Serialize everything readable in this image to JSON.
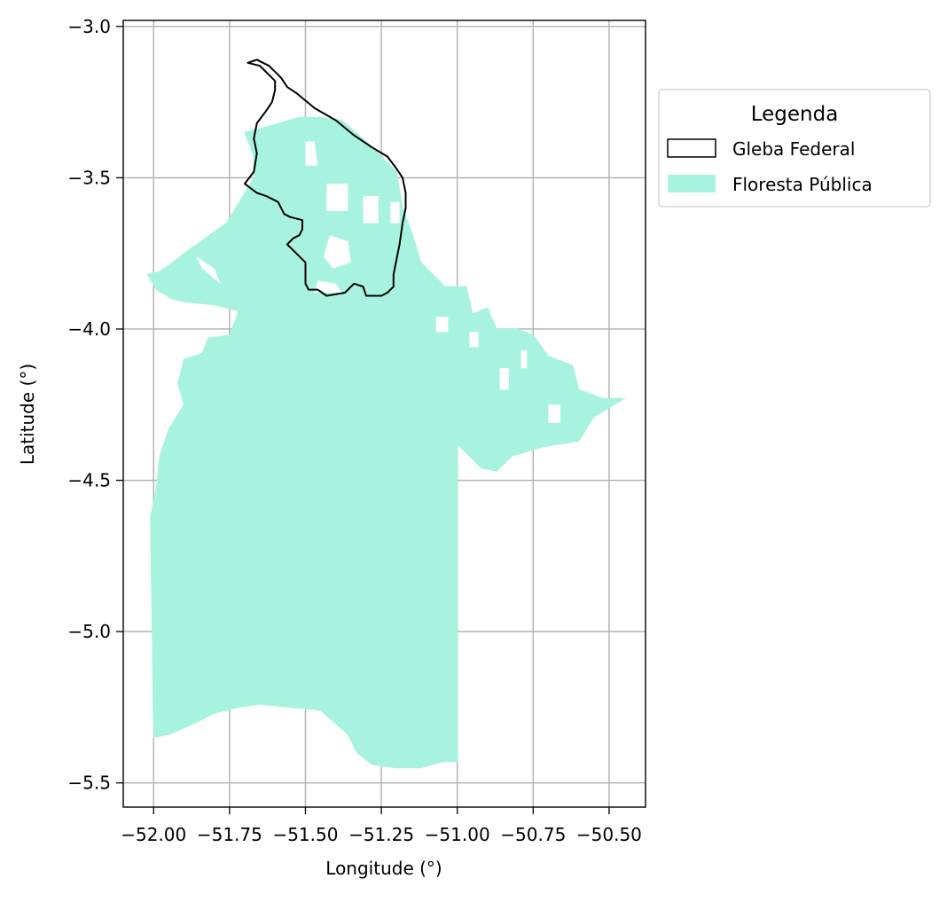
{
  "map": {
    "axes": {
      "xlabel": "Longitude (°)",
      "ylabel": "Latitude (°)",
      "xlim": [
        -52.1,
        -50.38
      ],
      "ylim": [
        -5.58,
        -2.98
      ],
      "xticks": [
        -52.0,
        -51.75,
        -51.5,
        -51.25,
        -51.0,
        -50.75,
        -50.5
      ],
      "yticks": [
        -3.0,
        -3.5,
        -4.0,
        -4.5,
        -5.0,
        -5.5
      ],
      "xtick_labels": [
        "−52.00",
        "−51.75",
        "−51.50",
        "−51.25",
        "−51.00",
        "−50.75",
        "−50.50"
      ],
      "ytick_labels": [
        "−3.0",
        "−3.5",
        "−4.0",
        "−4.5",
        "−5.0",
        "−5.5"
      ],
      "grid": true
    },
    "legend": {
      "title": "Legenda",
      "placement": "outside-right-top",
      "items": [
        {
          "label": "Gleba Federal",
          "type": "outline",
          "edge": "#000000",
          "fill": "none"
        },
        {
          "label": "Floresta Pública",
          "type": "fill",
          "edge": "none",
          "fill": "#a8f3df"
        }
      ]
    },
    "colors": {
      "forest": "#a8f3df",
      "gleba_edge": "#000000",
      "grid": "#b0b0b0",
      "gap": "#ffffff"
    },
    "layers": {
      "floresta_publica": [
        [
          -51.98,
          -3.81
        ],
        [
          -51.95,
          -3.79
        ],
        [
          -51.9,
          -3.75
        ],
        [
          -51.83,
          -3.7
        ],
        [
          -51.76,
          -3.65
        ],
        [
          -51.7,
          -3.55
        ],
        [
          -51.67,
          -3.5
        ],
        [
          -51.67,
          -3.43
        ],
        [
          -51.7,
          -3.35
        ],
        [
          -51.62,
          -3.33
        ],
        [
          -51.52,
          -3.3
        ],
        [
          -51.45,
          -3.3
        ],
        [
          -51.38,
          -3.31
        ],
        [
          -51.3,
          -3.38
        ],
        [
          -51.2,
          -3.48
        ],
        [
          -51.18,
          -3.6
        ],
        [
          -51.15,
          -3.68
        ],
        [
          -51.12,
          -3.78
        ],
        [
          -51.04,
          -3.86
        ],
        [
          -50.97,
          -3.86
        ],
        [
          -50.95,
          -3.95
        ],
        [
          -50.9,
          -3.93
        ],
        [
          -50.87,
          -4.0
        ],
        [
          -50.8,
          -4.0
        ],
        [
          -50.75,
          -4.02
        ],
        [
          -50.7,
          -4.09
        ],
        [
          -50.62,
          -4.12
        ],
        [
          -50.6,
          -4.2
        ],
        [
          -50.52,
          -4.23
        ],
        [
          -50.45,
          -4.23
        ],
        [
          -50.55,
          -4.29
        ],
        [
          -50.6,
          -4.37
        ],
        [
          -50.72,
          -4.39
        ],
        [
          -50.82,
          -4.42
        ],
        [
          -50.87,
          -4.47
        ],
        [
          -50.92,
          -4.46
        ],
        [
          -51.0,
          -4.38
        ],
        [
          -51.0,
          -5.43
        ],
        [
          -51.05,
          -5.43
        ],
        [
          -51.12,
          -5.45
        ],
        [
          -51.2,
          -5.45
        ],
        [
          -51.28,
          -5.44
        ],
        [
          -51.33,
          -5.4
        ],
        [
          -51.36,
          -5.34
        ],
        [
          -51.45,
          -5.26
        ],
        [
          -51.55,
          -5.25
        ],
        [
          -51.65,
          -5.24
        ],
        [
          -51.72,
          -5.25
        ],
        [
          -51.8,
          -5.27
        ],
        [
          -51.88,
          -5.31
        ],
        [
          -51.95,
          -5.34
        ],
        [
          -52.0,
          -5.35
        ],
        [
          -52.01,
          -4.62
        ],
        [
          -51.99,
          -4.52
        ],
        [
          -51.98,
          -4.42
        ],
        [
          -51.95,
          -4.33
        ],
        [
          -51.9,
          -4.25
        ],
        [
          -51.92,
          -4.18
        ],
        [
          -51.9,
          -4.1
        ],
        [
          -51.84,
          -4.08
        ],
        [
          -51.82,
          -4.03
        ],
        [
          -51.75,
          -4.02
        ],
        [
          -51.72,
          -3.94
        ],
        [
          -51.8,
          -3.92
        ],
        [
          -51.9,
          -3.91
        ],
        [
          -51.94,
          -3.9
        ],
        [
          -51.99,
          -3.87
        ],
        [
          -52.02,
          -3.82
        ]
      ],
      "gaps": [
        [
          [
            -51.43,
            -3.52
          ],
          [
            -51.36,
            -3.52
          ],
          [
            -51.36,
            -3.61
          ],
          [
            -51.43,
            -3.61
          ]
        ],
        [
          [
            -51.31,
            -3.56
          ],
          [
            -51.26,
            -3.56
          ],
          [
            -51.26,
            -3.65
          ],
          [
            -51.31,
            -3.65
          ]
        ],
        [
          [
            -51.42,
            -3.69
          ],
          [
            -51.36,
            -3.71
          ],
          [
            -51.35,
            -3.78
          ],
          [
            -51.41,
            -3.8
          ],
          [
            -51.44,
            -3.76
          ]
        ],
        [
          [
            -51.46,
            -3.84
          ],
          [
            -51.4,
            -3.85
          ],
          [
            -51.38,
            -3.88
          ],
          [
            -51.47,
            -3.88
          ]
        ],
        [
          [
            -51.86,
            -3.76
          ],
          [
            -51.8,
            -3.8
          ],
          [
            -51.78,
            -3.85
          ],
          [
            -51.84,
            -3.8
          ]
        ],
        [
          [
            -51.5,
            -3.38
          ],
          [
            -51.47,
            -3.38
          ],
          [
            -51.46,
            -3.46
          ],
          [
            -51.5,
            -3.46
          ]
        ],
        [
          [
            -51.22,
            -3.58
          ],
          [
            -51.19,
            -3.58
          ],
          [
            -51.19,
            -3.65
          ],
          [
            -51.22,
            -3.65
          ]
        ],
        [
          [
            -50.86,
            -4.13
          ],
          [
            -50.83,
            -4.13
          ],
          [
            -50.83,
            -4.2
          ],
          [
            -50.86,
            -4.2
          ]
        ],
        [
          [
            -50.79,
            -4.07
          ],
          [
            -50.77,
            -4.07
          ],
          [
            -50.77,
            -4.13
          ],
          [
            -50.79,
            -4.13
          ]
        ],
        [
          [
            -50.7,
            -4.25
          ],
          [
            -50.66,
            -4.25
          ],
          [
            -50.66,
            -4.31
          ],
          [
            -50.7,
            -4.31
          ]
        ],
        [
          [
            -51.07,
            -3.96
          ],
          [
            -51.03,
            -3.96
          ],
          [
            -51.03,
            -4.01
          ],
          [
            -51.07,
            -4.01
          ]
        ],
        [
          [
            -50.96,
            -4.01
          ],
          [
            -50.93,
            -4.01
          ],
          [
            -50.93,
            -4.06
          ],
          [
            -50.96,
            -4.06
          ]
        ]
      ],
      "gleba_federal": [
        [
          -51.69,
          -3.12
        ],
        [
          -51.66,
          -3.11
        ],
        [
          -51.62,
          -3.13
        ],
        [
          -51.58,
          -3.17
        ],
        [
          -51.56,
          -3.2
        ],
        [
          -51.53,
          -3.22
        ],
        [
          -51.47,
          -3.27
        ],
        [
          -51.4,
          -3.31
        ],
        [
          -51.34,
          -3.36
        ],
        [
          -51.28,
          -3.4
        ],
        [
          -51.23,
          -3.43
        ],
        [
          -51.2,
          -3.47
        ],
        [
          -51.18,
          -3.5
        ],
        [
          -51.17,
          -3.55
        ],
        [
          -51.17,
          -3.6
        ],
        [
          -51.18,
          -3.65
        ],
        [
          -51.19,
          -3.72
        ],
        [
          -51.2,
          -3.77
        ],
        [
          -51.21,
          -3.82
        ],
        [
          -51.21,
          -3.86
        ],
        [
          -51.23,
          -3.88
        ],
        [
          -51.25,
          -3.89
        ],
        [
          -51.3,
          -3.89
        ],
        [
          -51.31,
          -3.86
        ],
        [
          -51.34,
          -3.85
        ],
        [
          -51.37,
          -3.88
        ],
        [
          -51.43,
          -3.89
        ],
        [
          -51.46,
          -3.87
        ],
        [
          -51.49,
          -3.87
        ],
        [
          -51.5,
          -3.85
        ],
        [
          -51.5,
          -3.8
        ],
        [
          -51.5,
          -3.78
        ],
        [
          -51.53,
          -3.75
        ],
        [
          -51.56,
          -3.72
        ],
        [
          -51.54,
          -3.7
        ],
        [
          -51.52,
          -3.69
        ],
        [
          -51.51,
          -3.67
        ],
        [
          -51.51,
          -3.64
        ],
        [
          -51.55,
          -3.63
        ],
        [
          -51.57,
          -3.62
        ],
        [
          -51.59,
          -3.58
        ],
        [
          -51.63,
          -3.56
        ],
        [
          -51.66,
          -3.55
        ],
        [
          -51.7,
          -3.52
        ],
        [
          -51.67,
          -3.48
        ],
        [
          -51.66,
          -3.42
        ],
        [
          -51.67,
          -3.37
        ],
        [
          -51.66,
          -3.32
        ],
        [
          -51.63,
          -3.28
        ],
        [
          -51.61,
          -3.25
        ],
        [
          -51.6,
          -3.21
        ],
        [
          -51.6,
          -3.18
        ],
        [
          -51.63,
          -3.15
        ],
        [
          -51.65,
          -3.13
        ]
      ]
    }
  }
}
